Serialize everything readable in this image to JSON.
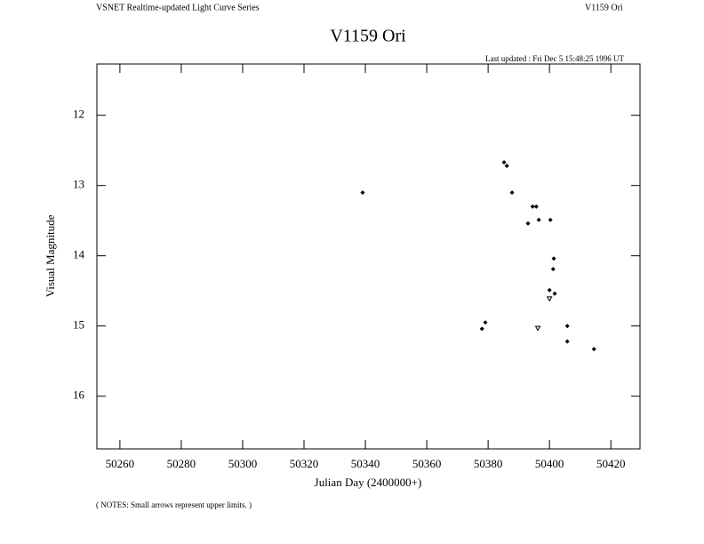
{
  "chart_data": {
    "type": "scatter",
    "header_left": "VSNET Realtime-updated Light Curve Series",
    "header_right": "V1159 Ori",
    "title": "V1159 Ori",
    "subtitle": "Last updated :  Fri Dec 5 15:48:25 1996 UT",
    "x_label": "Julian Day (2400000+)",
    "y_label": "Visual Magnitude",
    "note": "( NOTES: Small arrows represent upper limits. )",
    "xlim": [
      50252.5,
      50429.5
    ],
    "ylim": [
      16.75,
      11.27
    ],
    "xticks": [
      50260,
      50280,
      50300,
      50320,
      50340,
      50360,
      50380,
      50400,
      50420
    ],
    "yticks": [
      12,
      13,
      14,
      15,
      16
    ],
    "observations": {
      "x": [
        50339.1,
        50385.2,
        50386.1,
        50387.8,
        50394.5,
        50395.7,
        50393.0,
        50396.5,
        50400.3,
        50401.4,
        50401.2,
        50400.0,
        50401.7,
        50378.0,
        50379.1,
        50405.8,
        50405.8,
        50414.5
      ],
      "values": [
        13.1,
        12.67,
        12.72,
        13.1,
        13.3,
        13.3,
        13.54,
        13.49,
        13.49,
        14.04,
        14.19,
        14.49,
        14.54,
        15.04,
        14.95,
        15.0,
        15.22,
        15.33
      ]
    },
    "upper_limits": {
      "x": [
        50400.0,
        50396.2
      ],
      "values": [
        14.61,
        15.03
      ]
    }
  }
}
